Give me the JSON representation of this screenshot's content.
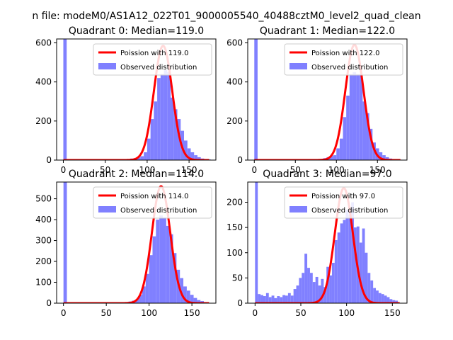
{
  "figure": {
    "suptitle": "n file: modeM0/AS1A12_022T01_9000005540_40488cztM0_level2_quad_clean"
  },
  "chart_data": [
    {
      "type": "bar",
      "title": "Quadrant 0: Median=119.0",
      "xlim": [
        -8,
        182
      ],
      "ylim": [
        0,
        620
      ],
      "xticks": [
        0,
        50,
        100,
        150
      ],
      "yticks": [
        0,
        200,
        400,
        600
      ],
      "legend": [
        "Poission with 119.0",
        "Observed distribution"
      ],
      "legend_position": "upper right",
      "poisson_mean": 119.0,
      "poisson_peak": 585,
      "bar_color": "#8080ff",
      "line_color": "#ff0000",
      "bins": [
        [
          0,
          4,
          620
        ],
        [
          64,
          68,
          2
        ],
        [
          68,
          72,
          3
        ],
        [
          72,
          76,
          3
        ],
        [
          76,
          80,
          5
        ],
        [
          80,
          84,
          8
        ],
        [
          84,
          88,
          10
        ],
        [
          88,
          92,
          14
        ],
        [
          92,
          96,
          20
        ],
        [
          96,
          100,
          40
        ],
        [
          100,
          104,
          110
        ],
        [
          104,
          108,
          210
        ],
        [
          108,
          112,
          300
        ],
        [
          112,
          116,
          420
        ],
        [
          116,
          120,
          440
        ],
        [
          120,
          124,
          460
        ],
        [
          124,
          128,
          450
        ],
        [
          128,
          132,
          320
        ],
        [
          132,
          136,
          260
        ],
        [
          136,
          140,
          210
        ],
        [
          140,
          144,
          150
        ],
        [
          144,
          148,
          100
        ],
        [
          148,
          152,
          60
        ],
        [
          152,
          156,
          40
        ],
        [
          156,
          160,
          25
        ],
        [
          160,
          164,
          15
        ],
        [
          164,
          168,
          8
        ],
        [
          168,
          172,
          5
        ],
        [
          172,
          176,
          3
        ]
      ]
    },
    {
      "type": "bar",
      "title": "Quadrant 1: Median=122.0",
      "xlim": [
        -8,
        186
      ],
      "ylim": [
        0,
        620
      ],
      "xticks": [
        0,
        50,
        100,
        150
      ],
      "yticks": [
        0,
        200,
        400,
        600
      ],
      "legend": [
        "Poission with 122.0",
        "Observed distribution"
      ],
      "legend_position": "upper right",
      "poisson_mean": 122.0,
      "poisson_peak": 590,
      "bar_color": "#8080ff",
      "line_color": "#ff0000",
      "bins": [
        [
          0,
          4,
          620
        ],
        [
          72,
          76,
          2
        ],
        [
          76,
          80,
          4
        ],
        [
          80,
          84,
          6
        ],
        [
          84,
          88,
          10
        ],
        [
          88,
          92,
          15
        ],
        [
          92,
          96,
          20
        ],
        [
          96,
          100,
          25
        ],
        [
          100,
          104,
          60
        ],
        [
          104,
          108,
          110
        ],
        [
          108,
          112,
          220
        ],
        [
          112,
          116,
          330
        ],
        [
          116,
          120,
          440
        ],
        [
          120,
          124,
          450
        ],
        [
          124,
          128,
          440
        ],
        [
          128,
          132,
          440
        ],
        [
          132,
          136,
          300
        ],
        [
          136,
          140,
          240
        ],
        [
          140,
          144,
          160
        ],
        [
          144,
          148,
          90
        ],
        [
          148,
          152,
          60
        ],
        [
          152,
          156,
          40
        ],
        [
          156,
          160,
          25
        ],
        [
          160,
          164,
          15
        ],
        [
          164,
          168,
          8
        ],
        [
          168,
          172,
          5
        ],
        [
          172,
          176,
          3
        ],
        [
          176,
          180,
          2
        ]
      ]
    },
    {
      "type": "bar",
      "title": "Quadrant 2: Median=114.0",
      "xlim": [
        -8,
        178
      ],
      "ylim": [
        0,
        580
      ],
      "xticks": [
        0,
        50,
        100,
        150
      ],
      "yticks": [
        0,
        100,
        200,
        300,
        400,
        500
      ],
      "legend": [
        "Poission with 114.0",
        "Observed distribution"
      ],
      "legend_position": "upper right",
      "poisson_mean": 114.0,
      "poisson_peak": 560,
      "bar_color": "#8080ff",
      "line_color": "#ff0000",
      "bins": [
        [
          0,
          4,
          580
        ],
        [
          68,
          72,
          3
        ],
        [
          72,
          76,
          5
        ],
        [
          76,
          80,
          8
        ],
        [
          80,
          84,
          12
        ],
        [
          84,
          88,
          18
        ],
        [
          88,
          92,
          40
        ],
        [
          92,
          96,
          80
        ],
        [
          96,
          100,
          140
        ],
        [
          100,
          104,
          230
        ],
        [
          104,
          108,
          320
        ],
        [
          108,
          112,
          400
        ],
        [
          112,
          116,
          420
        ],
        [
          116,
          120,
          410
        ],
        [
          120,
          124,
          370
        ],
        [
          124,
          128,
          330
        ],
        [
          128,
          132,
          240
        ],
        [
          132,
          136,
          160
        ],
        [
          136,
          140,
          120
        ],
        [
          140,
          144,
          80
        ],
        [
          144,
          148,
          60
        ],
        [
          148,
          152,
          40
        ],
        [
          152,
          156,
          25
        ],
        [
          156,
          160,
          15
        ],
        [
          160,
          164,
          10
        ],
        [
          164,
          168,
          5
        ]
      ]
    },
    {
      "type": "bar",
      "title": "Quadrant 3: Median=97.0",
      "xlim": [
        -8,
        166
      ],
      "ylim": [
        0,
        240
      ],
      "xticks": [
        0,
        50,
        100,
        150
      ],
      "yticks": [
        0,
        50,
        100,
        150,
        200
      ],
      "legend": [
        "Poission with 97.0",
        "Observed distribution"
      ],
      "legend_position": "upper right",
      "poisson_mean": 97.0,
      "poisson_peak": 228,
      "bar_color": "#8080ff",
      "line_color": "#ff0000",
      "bins": [
        [
          0,
          3,
          240
        ],
        [
          3,
          6,
          18
        ],
        [
          6,
          9,
          16
        ],
        [
          9,
          12,
          14
        ],
        [
          12,
          15,
          20
        ],
        [
          15,
          18,
          12
        ],
        [
          18,
          21,
          15
        ],
        [
          21,
          24,
          10
        ],
        [
          24,
          27,
          14
        ],
        [
          27,
          30,
          12
        ],
        [
          30,
          33,
          16
        ],
        [
          33,
          36,
          15
        ],
        [
          36,
          39,
          20
        ],
        [
          39,
          42,
          15
        ],
        [
          42,
          45,
          28
        ],
        [
          45,
          48,
          35
        ],
        [
          48,
          51,
          50
        ],
        [
          51,
          54,
          60
        ],
        [
          54,
          57,
          98
        ],
        [
          57,
          60,
          70
        ],
        [
          60,
          63,
          60
        ],
        [
          63,
          66,
          42
        ],
        [
          66,
          69,
          52
        ],
        [
          69,
          72,
          35
        ],
        [
          72,
          75,
          48
        ],
        [
          75,
          78,
          32
        ],
        [
          78,
          81,
          72
        ],
        [
          81,
          84,
          55
        ],
        [
          84,
          87,
          80
        ],
        [
          87,
          90,
          125
        ],
        [
          90,
          93,
          140
        ],
        [
          93,
          96,
          158
        ],
        [
          96,
          99,
          165
        ],
        [
          99,
          102,
          185
        ],
        [
          102,
          105,
          175
        ],
        [
          105,
          108,
          200
        ],
        [
          108,
          111,
          150
        ],
        [
          111,
          114,
          152
        ],
        [
          114,
          117,
          120
        ],
        [
          117,
          120,
          148
        ],
        [
          120,
          123,
          100
        ],
        [
          123,
          126,
          60
        ],
        [
          126,
          129,
          45
        ],
        [
          129,
          132,
          30
        ],
        [
          132,
          135,
          25
        ],
        [
          135,
          138,
          20
        ],
        [
          138,
          141,
          18
        ],
        [
          141,
          144,
          15
        ],
        [
          144,
          147,
          12
        ],
        [
          147,
          150,
          8
        ],
        [
          150,
          153,
          6
        ],
        [
          153,
          156,
          5
        ]
      ]
    }
  ]
}
